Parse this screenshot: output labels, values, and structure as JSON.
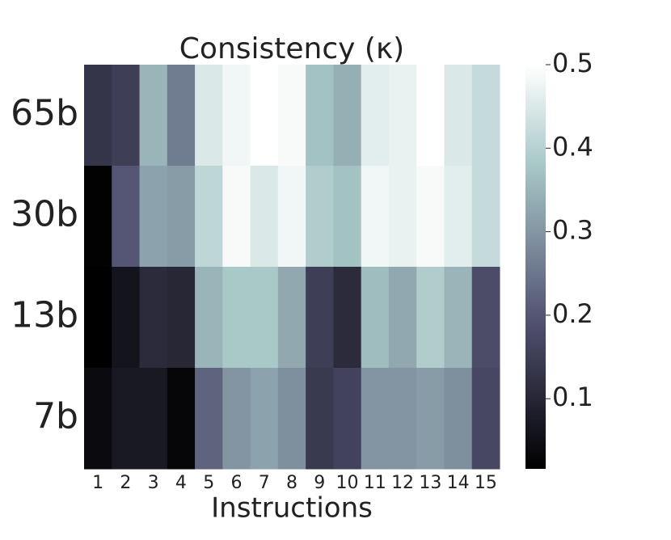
{
  "chart_data": {
    "type": "heatmap",
    "title": "Consistency (κ)",
    "x_label": "Instructions",
    "x": [
      "1",
      "2",
      "3",
      "4",
      "5",
      "6",
      "7",
      "8",
      "9",
      "10",
      "11",
      "12",
      "13",
      "14",
      "15"
    ],
    "y": [
      "65b",
      "30b",
      "13b",
      "7b"
    ],
    "values": [
      [
        0.13,
        0.15,
        0.35,
        0.26,
        0.45,
        0.48,
        0.5,
        0.49,
        0.37,
        0.34,
        0.46,
        0.47,
        0.5,
        0.45,
        0.42
      ],
      [
        0.02,
        0.2,
        0.32,
        0.31,
        0.41,
        0.49,
        0.45,
        0.48,
        0.39,
        0.37,
        0.48,
        0.47,
        0.49,
        0.46,
        0.42
      ],
      [
        0.016,
        0.06,
        0.11,
        0.1,
        0.35,
        0.38,
        0.38,
        0.33,
        0.15,
        0.11,
        0.36,
        0.33,
        0.39,
        0.35,
        0.18
      ],
      [
        0.04,
        0.07,
        0.07,
        0.03,
        0.22,
        0.3,
        0.32,
        0.29,
        0.14,
        0.16,
        0.3,
        0.3,
        0.31,
        0.29,
        0.17
      ]
    ],
    "colormap": "bone",
    "clim": [
      0.016,
      0.5
    ],
    "cticks": [
      0.1,
      0.2,
      0.3,
      0.4,
      0.5
    ]
  }
}
